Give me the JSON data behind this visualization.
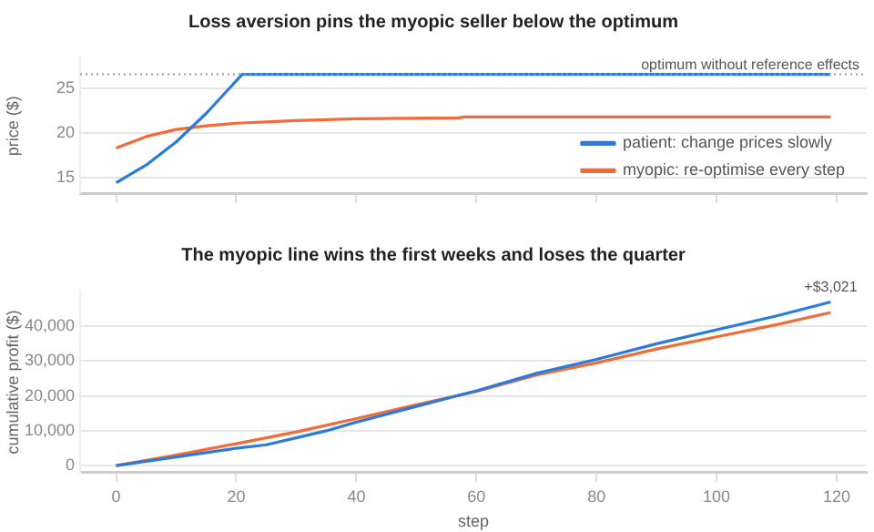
{
  "chart_data": [
    {
      "type": "line",
      "title": "Loss aversion pins the myopic seller below the optimum",
      "ylabel": "price ($)",
      "xlim": [
        -6,
        125
      ],
      "xticks": [
        {
          "value": 0,
          "label": null
        },
        {
          "value": 20,
          "label": null
        },
        {
          "value": 40,
          "label": null
        },
        {
          "value": 60,
          "label": null
        },
        {
          "value": 80,
          "label": null
        },
        {
          "value": 100,
          "label": null
        },
        {
          "value": 120,
          "label": null
        }
      ],
      "ylim": [
        13.2,
        28.4
      ],
      "yticks": [
        15,
        20,
        25
      ],
      "tick_labels": "y",
      "grid": "y",
      "legend": "bottom right",
      "ref_lines": [
        {
          "axis": "y",
          "value": 26.6,
          "label": "optimum without reference effects",
          "color": "#999999",
          "line_style": "dotted"
        }
      ],
      "series": [
        {
          "name": "patient: change prices slowly",
          "color": "#2b7bdc",
          "x": [
            0,
            5,
            10,
            15,
            21,
            40,
            60,
            80,
            100,
            119
          ],
          "values": [
            14.4,
            16.4,
            19,
            22.2,
            26.6,
            26.6,
            26.6,
            26.6,
            26.6,
            26.6
          ]
        },
        {
          "name": "myopic: re-optimise every step",
          "color": "#f26b38",
          "x": [
            0,
            5,
            10,
            15,
            20,
            30,
            40,
            57,
            58,
            80,
            100,
            119
          ],
          "values": [
            18.3,
            19.6,
            20.4,
            20.8,
            21.1,
            21.4,
            21.6,
            21.7,
            21.8,
            21.8,
            21.8,
            21.8
          ]
        }
      ]
    },
    {
      "type": "line",
      "title": "The myopic line wins the first weeks and loses the quarter",
      "xlabel": "step",
      "ylabel": "cumulative profit ($)",
      "xlim": [
        -6,
        125
      ],
      "xticks": [
        0,
        20,
        40,
        60,
        80,
        100,
        120
      ],
      "ylim": [
        -2000,
        50000
      ],
      "yticks": [
        {
          "value": 0,
          "label": "0"
        },
        {
          "value": 10000,
          "label": "10,000"
        },
        {
          "value": 20000,
          "label": "20,000"
        },
        {
          "value": 30000,
          "label": "30,000"
        },
        {
          "value": 40000,
          "label": "40,000"
        }
      ],
      "grid": "y",
      "annotations": [
        {
          "text": "+$3,021",
          "x": 119,
          "y": 47000
        }
      ],
      "series": [
        {
          "color": "#2b7bdc",
          "x": [
            0,
            10,
            20,
            25,
            30,
            35,
            40,
            50,
            60,
            70,
            80,
            90,
            100,
            110,
            119
          ],
          "values": [
            0,
            2500,
            5000,
            6000,
            8000,
            10000,
            12500,
            17000,
            21500,
            26500,
            30500,
            35000,
            39000,
            43000,
            47000
          ]
        },
        {
          "color": "#f26b38",
          "x": [
            0,
            10,
            20,
            30,
            40,
            50,
            60,
            70,
            80,
            90,
            100,
            110,
            119
          ],
          "values": [
            0,
            3000,
            6300,
            9700,
            13500,
            17500,
            21300,
            26000,
            29500,
            33500,
            37000,
            40500,
            44000
          ]
        }
      ]
    }
  ]
}
